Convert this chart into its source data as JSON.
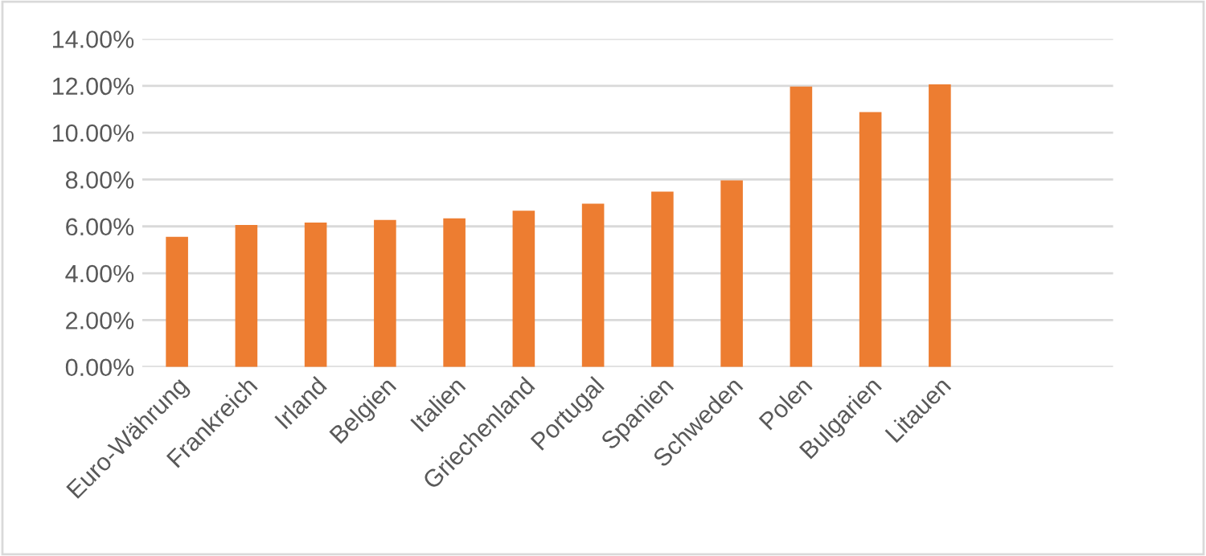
{
  "chart_data": {
    "type": "bar",
    "categories": [
      "Euro-Währung",
      "Frankreich",
      "Irland",
      "Belgien",
      "Italien",
      "Griechenland",
      "Portugal",
      "Spanien",
      "Schweden",
      "Polen",
      "Bulgarien",
      "Litauen",
      null,
      null
    ],
    "values": [
      5.55,
      6.06,
      6.16,
      6.27,
      6.34,
      6.67,
      6.97,
      7.48,
      7.96,
      11.97,
      10.88,
      12.06,
      null,
      null
    ],
    "color": "#ed7d31",
    "ylim": [
      0,
      14
    ],
    "yticks": [
      {
        "value": 0,
        "label": "0.00%"
      },
      {
        "value": 2,
        "label": "2.00%"
      },
      {
        "value": 4,
        "label": "4.00%"
      },
      {
        "value": 6,
        "label": "6.00%"
      },
      {
        "value": 8,
        "label": "8.00%"
      },
      {
        "value": 10,
        "label": "10.00%"
      },
      {
        "value": 12,
        "label": "12.00%"
      },
      {
        "value": 14,
        "label": "14.00%"
      }
    ],
    "grid": "y",
    "legend": false
  }
}
